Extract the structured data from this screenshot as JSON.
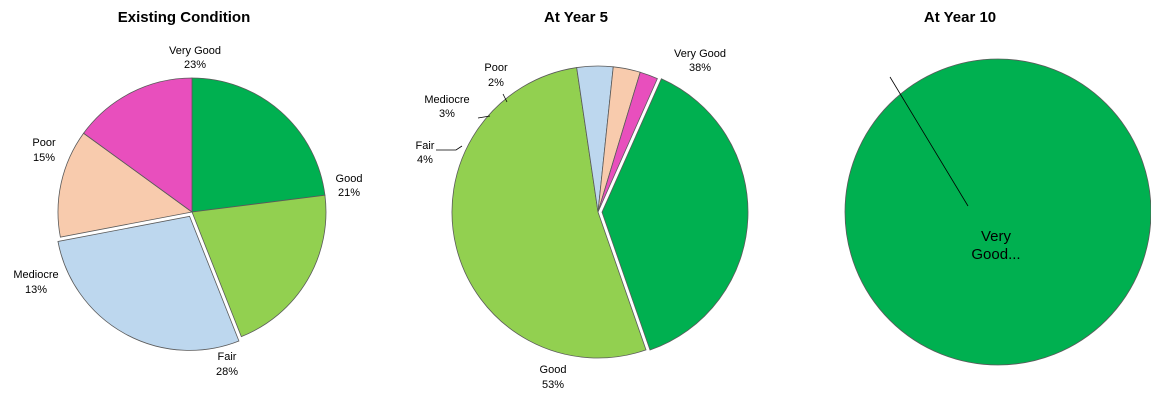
{
  "chart_data": [
    {
      "type": "pie",
      "title": "Existing Condition",
      "slices": [
        {
          "label": "Very Good",
          "value": 23,
          "display": "23%"
        },
        {
          "label": "Good",
          "value": 21,
          "display": "21%"
        },
        {
          "label": "Fair",
          "value": 28,
          "display": "28%"
        },
        {
          "label": "Mediocre",
          "value": 13,
          "display": "13%"
        },
        {
          "label": "Poor",
          "value": 15,
          "display": "15%"
        }
      ]
    },
    {
      "type": "pie",
      "title": "At Year 5",
      "slices": [
        {
          "label": "Very Good",
          "value": 38,
          "display": "38%"
        },
        {
          "label": "Good",
          "value": 53,
          "display": "53%"
        },
        {
          "label": "Fair",
          "value": 4,
          "display": "4%"
        },
        {
          "label": "Mediocre",
          "value": 3,
          "display": "3%"
        },
        {
          "label": "Poor",
          "value": 2,
          "display": "2%"
        }
      ]
    },
    {
      "type": "pie",
      "title": "At Year 10",
      "slices": [
        {
          "label": "Very Good...",
          "value": 100,
          "display": ""
        }
      ]
    }
  ],
  "colors": {
    "Very Good": "#00b050",
    "Good": "#92d050",
    "Fair": "#bdd7ee",
    "Mediocre": "#f8cbad",
    "Poor": "#e84fbd"
  }
}
